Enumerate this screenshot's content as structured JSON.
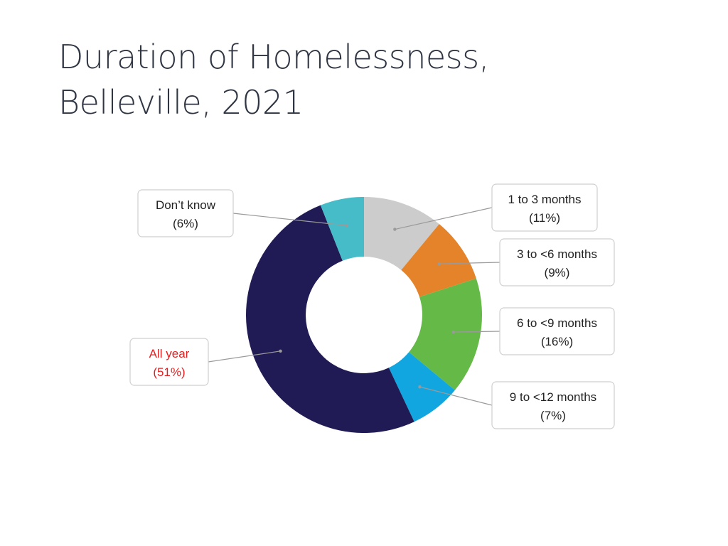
{
  "title": {
    "line1": "Duration of Homelessness,",
    "line2": "Belleville, 2021"
  },
  "chart_data": {
    "type": "pie",
    "variant": "donut",
    "title": "Duration of Homelessness, Belleville, 2021",
    "unit": "%",
    "series": [
      {
        "name": "1 to 3 months",
        "value": 11,
        "label": "(11%)",
        "color": "#cccccc",
        "label_color": "#222222"
      },
      {
        "name": "3 to <6 months",
        "value": 9,
        "label": "(9%)",
        "color": "#e5832a",
        "label_color": "#222222"
      },
      {
        "name": "6 to <9 months",
        "value": 16,
        "label": "(16%)",
        "color": "#64b947",
        "label_color": "#222222"
      },
      {
        "name": "9 to <12 months",
        "value": 7,
        "label": "(7%)",
        "color": "#12a6e0",
        "label_color": "#222222"
      },
      {
        "name": "All year",
        "value": 51,
        "label": "(51%)",
        "color": "#201b54",
        "label_color": "#e02020"
      },
      {
        "name": "Don’t know",
        "value": 6,
        "label": "(6%)",
        "color": "#47bcc9",
        "label_color": "#222222"
      }
    ]
  }
}
